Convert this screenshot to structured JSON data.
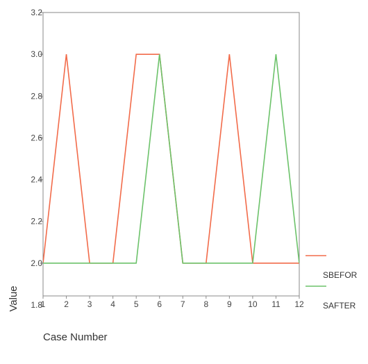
{
  "chart_data": {
    "type": "line",
    "title": "",
    "xlabel": "Case Number",
    "ylabel": "Value",
    "x": [
      1,
      2,
      3,
      4,
      5,
      6,
      7,
      8,
      9,
      10,
      11,
      12
    ],
    "xlim": [
      1,
      12
    ],
    "ylim": [
      1.8,
      3.2
    ],
    "yticks": [
      "1.8",
      "2.0",
      "2.2",
      "2.4",
      "2.6",
      "2.8",
      "3.0",
      "3.2"
    ],
    "grid": false,
    "legend": "right",
    "series": [
      {
        "name": "SBEFOR",
        "color": "#f26b4a",
        "points": [
          [
            1,
            2.0
          ],
          [
            2,
            3.0
          ],
          [
            3,
            2.0
          ],
          [
            4,
            2.0
          ],
          [
            5,
            3.0
          ],
          [
            6,
            3.0
          ],
          [
            7,
            2.0
          ],
          [
            8,
            2.0
          ],
          [
            9,
            3.0
          ],
          [
            10,
            2.0
          ],
          [
            11,
            2.0
          ],
          [
            12,
            2.0
          ]
        ]
      },
      {
        "name": "SAFTER",
        "color": "#6cc26a",
        "points": [
          [
            1,
            2.0
          ],
          [
            2,
            2.0
          ],
          [
            3,
            2.0
          ],
          [
            4,
            2.0
          ],
          [
            5,
            2.0
          ],
          [
            6,
            3.0
          ],
          [
            7,
            2.0
          ],
          [
            8,
            2.0
          ],
          [
            9,
            2.0
          ],
          [
            10,
            2.0
          ],
          [
            11,
            3.0
          ],
          [
            12,
            2.0
          ]
        ]
      }
    ]
  }
}
